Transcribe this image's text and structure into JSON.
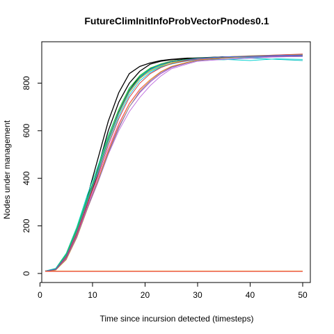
{
  "chart_data": {
    "type": "line",
    "title": "FutureClimInitInfoProbVectorPnodes0.1",
    "xlabel": "Time since incursion detected (timesteps)",
    "ylabel": "Nodes under management",
    "xlim": [
      1,
      50
    ],
    "ylim": [
      0,
      930
    ],
    "xticks": [
      0,
      10,
      20,
      30,
      40,
      50
    ],
    "yticks": [
      0,
      200,
      400,
      600,
      800
    ],
    "grid": false,
    "legend": "none",
    "series": [
      {
        "color": "#000000",
        "points": [
          [
            1,
            10
          ],
          [
            3,
            20
          ],
          [
            5,
            80
          ],
          [
            7,
            180
          ],
          [
            9,
            320
          ],
          [
            11,
            480
          ],
          [
            13,
            640
          ],
          [
            15,
            760
          ],
          [
            17,
            840
          ],
          [
            19,
            870
          ],
          [
            21,
            885
          ],
          [
            23,
            895
          ],
          [
            25,
            900
          ],
          [
            28,
            905
          ],
          [
            30,
            905
          ],
          [
            35,
            910
          ],
          [
            40,
            912
          ],
          [
            45,
            914
          ],
          [
            50,
            915
          ]
        ]
      },
      {
        "color": "#000000",
        "points": [
          [
            1,
            10
          ],
          [
            3,
            18
          ],
          [
            5,
            75
          ],
          [
            7,
            170
          ],
          [
            9,
            300
          ],
          [
            11,
            440
          ],
          [
            13,
            600
          ],
          [
            15,
            720
          ],
          [
            17,
            800
          ],
          [
            19,
            850
          ],
          [
            21,
            880
          ],
          [
            23,
            892
          ],
          [
            25,
            898
          ],
          [
            28,
            903
          ],
          [
            30,
            906
          ],
          [
            35,
            910
          ],
          [
            40,
            912
          ],
          [
            45,
            915
          ],
          [
            50,
            918
          ]
        ]
      },
      {
        "color": "#000000",
        "points": [
          [
            1,
            10
          ],
          [
            3,
            16
          ],
          [
            5,
            70
          ],
          [
            7,
            165
          ],
          [
            9,
            290
          ],
          [
            11,
            420
          ],
          [
            13,
            560
          ],
          [
            15,
            680
          ],
          [
            17,
            770
          ],
          [
            19,
            830
          ],
          [
            21,
            862
          ],
          [
            23,
            880
          ],
          [
            25,
            892
          ],
          [
            28,
            900
          ],
          [
            30,
            904
          ],
          [
            35,
            908
          ],
          [
            40,
            910
          ],
          [
            45,
            912
          ],
          [
            50,
            914
          ]
        ]
      },
      {
        "color": "#00C0C0",
        "points": [
          [
            1,
            10
          ],
          [
            3,
            20
          ],
          [
            5,
            80
          ],
          [
            7,
            190
          ],
          [
            9,
            320
          ],
          [
            11,
            430
          ],
          [
            13,
            560
          ],
          [
            15,
            670
          ],
          [
            17,
            760
          ],
          [
            19,
            820
          ],
          [
            21,
            850
          ],
          [
            23,
            870
          ],
          [
            25,
            880
          ],
          [
            28,
            895
          ],
          [
            30,
            900
          ],
          [
            35,
            898
          ],
          [
            40,
            905
          ],
          [
            45,
            900
          ],
          [
            50,
            895
          ]
        ]
      },
      {
        "color": "#00D0D0",
        "points": [
          [
            1,
            10
          ],
          [
            3,
            22
          ],
          [
            5,
            85
          ],
          [
            7,
            195
          ],
          [
            9,
            330
          ],
          [
            11,
            450
          ],
          [
            13,
            580
          ],
          [
            15,
            690
          ],
          [
            17,
            780
          ],
          [
            19,
            830
          ],
          [
            21,
            860
          ],
          [
            23,
            878
          ],
          [
            25,
            888
          ],
          [
            28,
            895
          ],
          [
            30,
            898
          ],
          [
            35,
            900
          ],
          [
            40,
            895
          ],
          [
            45,
            902
          ],
          [
            50,
            900
          ]
        ]
      },
      {
        "color": "#00BFFF",
        "points": [
          [
            1,
            10
          ],
          [
            3,
            19
          ],
          [
            5,
            78
          ],
          [
            7,
            185
          ],
          [
            9,
            310
          ],
          [
            11,
            420
          ],
          [
            13,
            550
          ],
          [
            15,
            660
          ],
          [
            17,
            750
          ],
          [
            19,
            810
          ],
          [
            21,
            845
          ],
          [
            23,
            868
          ],
          [
            25,
            882
          ],
          [
            28,
            893
          ],
          [
            30,
            900
          ],
          [
            35,
            905
          ],
          [
            40,
            908
          ],
          [
            45,
            910
          ],
          [
            50,
            912
          ]
        ]
      },
      {
        "color": "#22AA22",
        "points": [
          [
            1,
            10
          ],
          [
            3,
            18
          ],
          [
            5,
            76
          ],
          [
            7,
            180
          ],
          [
            9,
            305
          ],
          [
            11,
            430
          ],
          [
            13,
            565
          ],
          [
            15,
            680
          ],
          [
            17,
            770
          ],
          [
            19,
            825
          ],
          [
            21,
            858
          ],
          [
            23,
            875
          ],
          [
            25,
            888
          ],
          [
            28,
            898
          ],
          [
            30,
            902
          ],
          [
            35,
            908
          ],
          [
            40,
            910
          ],
          [
            45,
            914
          ],
          [
            50,
            916
          ]
        ]
      },
      {
        "color": "#33CC33",
        "points": [
          [
            1,
            10
          ],
          [
            3,
            20
          ],
          [
            5,
            82
          ],
          [
            7,
            188
          ],
          [
            9,
            315
          ],
          [
            11,
            440
          ],
          [
            13,
            575
          ],
          [
            15,
            690
          ],
          [
            17,
            778
          ],
          [
            19,
            832
          ],
          [
            21,
            864
          ],
          [
            23,
            880
          ],
          [
            25,
            892
          ],
          [
            28,
            900
          ],
          [
            30,
            905
          ],
          [
            35,
            910
          ],
          [
            40,
            912
          ],
          [
            45,
            916
          ],
          [
            50,
            918
          ]
        ]
      },
      {
        "color": "#DDDD00",
        "points": [
          [
            1,
            10
          ],
          [
            3,
            17
          ],
          [
            5,
            72
          ],
          [
            7,
            172
          ],
          [
            9,
            298
          ],
          [
            11,
            425
          ],
          [
            13,
            555
          ],
          [
            15,
            670
          ],
          [
            17,
            760
          ],
          [
            19,
            818
          ],
          [
            21,
            852
          ],
          [
            23,
            872
          ],
          [
            25,
            886
          ],
          [
            28,
            896
          ],
          [
            30,
            902
          ],
          [
            35,
            910
          ],
          [
            40,
            915
          ],
          [
            45,
            918
          ],
          [
            50,
            920
          ]
        ]
      },
      {
        "color": "#BB66DD",
        "points": [
          [
            1,
            10
          ],
          [
            3,
            15
          ],
          [
            5,
            60
          ],
          [
            7,
            150
          ],
          [
            9,
            270
          ],
          [
            11,
            380
          ],
          [
            13,
            500
          ],
          [
            15,
            600
          ],
          [
            17,
            680
          ],
          [
            19,
            740
          ],
          [
            21,
            790
          ],
          [
            23,
            830
          ],
          [
            25,
            860
          ],
          [
            28,
            880
          ],
          [
            30,
            892
          ],
          [
            35,
            900
          ],
          [
            40,
            905
          ],
          [
            45,
            910
          ],
          [
            50,
            912
          ]
        ]
      },
      {
        "color": "#9933CC",
        "points": [
          [
            1,
            10
          ],
          [
            3,
            15
          ],
          [
            5,
            62
          ],
          [
            7,
            155
          ],
          [
            9,
            275
          ],
          [
            11,
            390
          ],
          [
            13,
            510
          ],
          [
            15,
            615
          ],
          [
            17,
            700
          ],
          [
            19,
            760
          ],
          [
            21,
            805
          ],
          [
            23,
            840
          ],
          [
            25,
            865
          ],
          [
            28,
            884
          ],
          [
            30,
            895
          ],
          [
            35,
            905
          ],
          [
            40,
            910
          ],
          [
            45,
            912
          ],
          [
            50,
            915
          ]
        ]
      },
      {
        "color": "#E040E0",
        "points": [
          [
            1,
            10
          ],
          [
            3,
            16
          ],
          [
            5,
            65
          ],
          [
            7,
            160
          ],
          [
            9,
            280
          ],
          [
            11,
            400
          ],
          [
            13,
            525
          ],
          [
            15,
            630
          ],
          [
            17,
            715
          ],
          [
            19,
            775
          ],
          [
            21,
            815
          ],
          [
            23,
            848
          ],
          [
            25,
            870
          ],
          [
            28,
            888
          ],
          [
            30,
            898
          ],
          [
            35,
            906
          ],
          [
            40,
            910
          ],
          [
            45,
            914
          ],
          [
            50,
            918
          ]
        ]
      },
      {
        "color": "#FF8800",
        "points": [
          [
            1,
            10
          ],
          [
            3,
            14
          ],
          [
            5,
            58
          ],
          [
            7,
            150
          ],
          [
            9,
            270
          ],
          [
            11,
            390
          ],
          [
            13,
            515
          ],
          [
            15,
            625
          ],
          [
            17,
            712
          ],
          [
            19,
            772
          ],
          [
            21,
            815
          ],
          [
            23,
            848
          ],
          [
            25,
            870
          ],
          [
            28,
            888
          ],
          [
            30,
            897
          ],
          [
            35,
            905
          ],
          [
            40,
            910
          ],
          [
            45,
            915
          ],
          [
            50,
            918
          ]
        ]
      },
      {
        "color": "#888888",
        "points": [
          [
            1,
            10
          ],
          [
            3,
            15
          ],
          [
            5,
            60
          ],
          [
            7,
            152
          ],
          [
            9,
            272
          ],
          [
            11,
            385
          ],
          [
            13,
            505
          ],
          [
            15,
            610
          ],
          [
            17,
            700
          ],
          [
            19,
            765
          ],
          [
            21,
            810
          ],
          [
            23,
            845
          ],
          [
            25,
            868
          ],
          [
            28,
            885
          ],
          [
            30,
            895
          ],
          [
            35,
            904
          ],
          [
            40,
            910
          ],
          [
            45,
            914
          ],
          [
            50,
            916
          ]
        ]
      },
      {
        "color": "#CC3333",
        "points": [
          [
            1,
            10
          ],
          [
            3,
            16
          ],
          [
            5,
            68
          ],
          [
            7,
            165
          ],
          [
            9,
            290
          ],
          [
            11,
            410
          ],
          [
            13,
            540
          ],
          [
            15,
            650
          ],
          [
            17,
            740
          ],
          [
            19,
            800
          ],
          [
            21,
            840
          ],
          [
            23,
            865
          ],
          [
            25,
            882
          ],
          [
            28,
            895
          ],
          [
            30,
            902
          ],
          [
            35,
            910
          ],
          [
            40,
            914
          ],
          [
            45,
            918
          ],
          [
            50,
            922
          ]
        ]
      },
      {
        "color": "#3366FF",
        "points": [
          [
            1,
            10
          ],
          [
            3,
            18
          ],
          [
            5,
            74
          ],
          [
            7,
            176
          ],
          [
            9,
            302
          ],
          [
            11,
            428
          ],
          [
            13,
            560
          ],
          [
            15,
            675
          ],
          [
            17,
            765
          ],
          [
            19,
            822
          ],
          [
            21,
            856
          ],
          [
            23,
            876
          ],
          [
            25,
            889
          ],
          [
            28,
            898
          ],
          [
            30,
            904
          ],
          [
            35,
            910
          ],
          [
            40,
            913
          ],
          [
            45,
            916
          ],
          [
            50,
            918
          ]
        ]
      },
      {
        "color": "#CC3333",
        "points": [
          [
            1,
            10
          ],
          [
            5,
            10
          ],
          [
            10,
            10
          ],
          [
            15,
            10
          ],
          [
            20,
            10
          ],
          [
            25,
            10
          ],
          [
            30,
            10
          ],
          [
            35,
            10
          ],
          [
            40,
            10
          ],
          [
            45,
            10
          ],
          [
            50,
            10
          ]
        ]
      },
      {
        "color": "#E040E0",
        "points": [
          [
            1,
            8
          ],
          [
            50,
            8
          ]
        ]
      },
      {
        "color": "#FF8800",
        "points": [
          [
            1,
            9
          ],
          [
            50,
            9
          ]
        ]
      }
    ]
  }
}
